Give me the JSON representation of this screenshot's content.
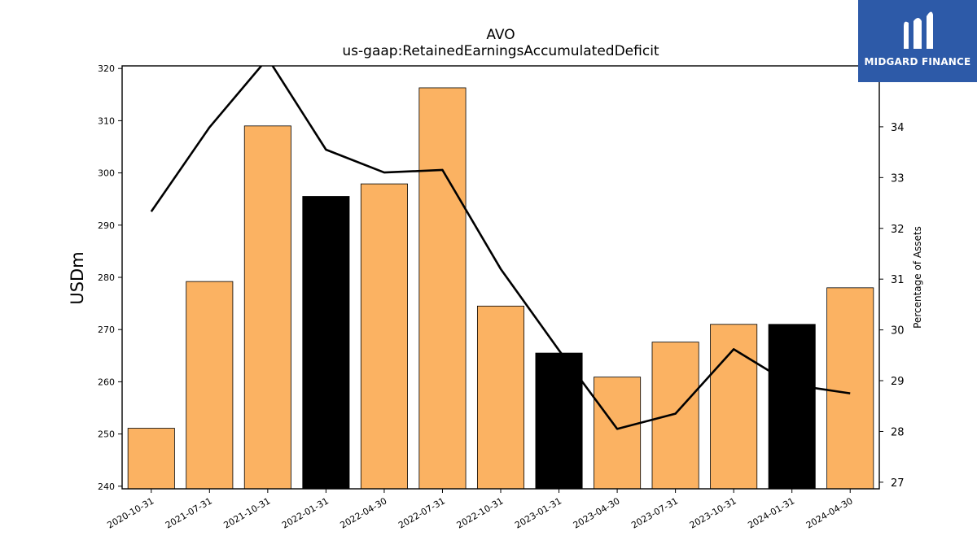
{
  "chart_data": {
    "type": "bar",
    "title": "AVO",
    "subtitle": "us-gaap:RetainedEarningsAccumulatedDeficit",
    "ylabel": "USDm",
    "y2label": "Percentage of Assets",
    "ylim": [
      239.5,
      320.5
    ],
    "y2lim": [
      26.87,
      35.2
    ],
    "yticks": [
      240,
      250,
      260,
      270,
      280,
      290,
      300,
      310,
      320
    ],
    "y2ticks": [
      27,
      28,
      29,
      30,
      31,
      32,
      33,
      34
    ],
    "categories": [
      "2020-10-31",
      "2021-07-31",
      "2021-10-31",
      "2022-01-31",
      "2022-04-30",
      "2022-07-31",
      "2022-10-31",
      "2023-01-31",
      "2023-04-30",
      "2023-07-31",
      "2023-10-31",
      "2024-01-31",
      "2024-04-30"
    ],
    "series": [
      {
        "kind": "bar",
        "values": [
          251.1,
          279.2,
          309.0,
          295.5,
          297.9,
          316.3,
          274.5,
          265.5,
          260.9,
          267.6,
          271.0,
          271.0,
          278.0
        ],
        "colors": [
          "#fbb262",
          "#fbb262",
          "#fbb262",
          "#000000",
          "#fbb262",
          "#fbb262",
          "#fbb262",
          "#000000",
          "#fbb262",
          "#fbb262",
          "#fbb262",
          "#000000",
          "#fbb262"
        ]
      },
      {
        "kind": "line",
        "axis": "right",
        "color": "#000000",
        "values": [
          32.33,
          33.99,
          35.35,
          33.55,
          33.1,
          33.15,
          31.2,
          29.6,
          28.05,
          28.35,
          29.62,
          28.92,
          28.75
        ]
      }
    ],
    "grid": false
  },
  "logo": {
    "text": "MIDGARD FINANCE",
    "color": "#2d5aa8"
  }
}
